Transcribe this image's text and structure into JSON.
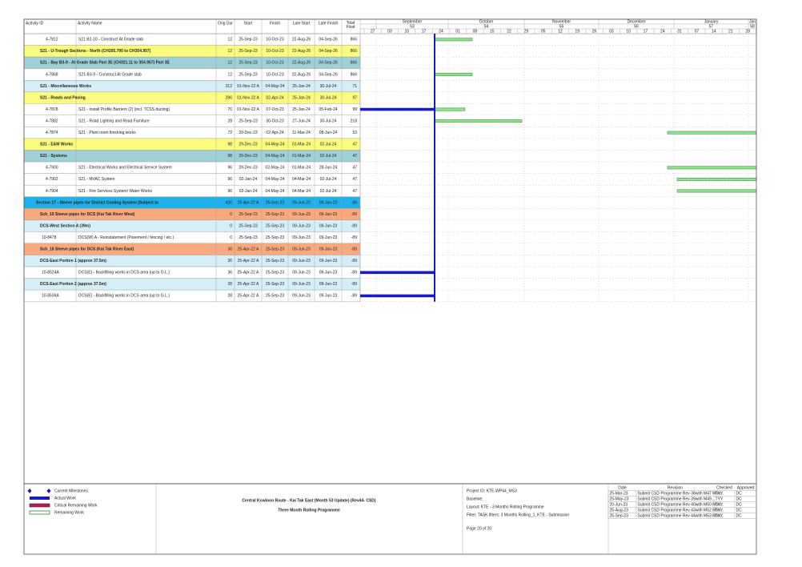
{
  "table": {
    "columns": [
      "Activity ID",
      "Activity Name",
      "Orig Dur",
      "Start",
      "Finish",
      "Late Start",
      "Late Finish",
      "Total Float"
    ],
    "rows": [
      {
        "id": "4-7812",
        "name": "S21 B2-10 - Construct At Grade slab",
        "orig_dur": 12,
        "start": "25-Sep-23",
        "finish": "10-Oct-23",
        "late_start": "22-Aug-26",
        "late_finish": "04-Sep-26",
        "total_float": 866,
        "color": "#ffffff"
      },
      {
        "name": "S21 - U-Trough Sections - North (CH205.700 to CH354.957)",
        "orig_dur": 12,
        "start": "25-Sep-23",
        "finish": "10-Oct-23",
        "late_start": "22-Aug-26",
        "late_finish": "04-Sep-26",
        "total_float": 866,
        "color": "#fbfb7e"
      },
      {
        "name": "S21 - Bay B3-9 - At Grade Slab Part 3E (CH321.11 to 354.957) Part 3E",
        "orig_dur": 12,
        "start": "25-Sep-23",
        "finish": "10-Oct-23",
        "late_start": "22-Aug-26",
        "late_finish": "04-Sep-26",
        "total_float": 866,
        "color": "#9fd0d6",
        "text_color": "#ffffff"
      },
      {
        "id": "4-7868",
        "name": "S21-B3-9 - Construct At Grade slab",
        "orig_dur": 12,
        "start": "25-Sep-23",
        "finish": "10-Oct-23",
        "late_start": "22-Aug-26",
        "late_finish": "04-Sep-26",
        "total_float": 866,
        "color": "#ffffff"
      },
      {
        "name": "S21 - Miscellaneous Works",
        "orig_dur": 312,
        "start": "01-Nov-22 A",
        "finish": "04-May-24",
        "late_start": "25-Jan-24",
        "late_finish": "30-Jul-24",
        "total_float": 71,
        "color": "#d6eef8"
      },
      {
        "name": "S21 - Roads and Paving",
        "orig_dur": 286,
        "start": "01-Nov-22 A",
        "finish": "02-Apr-24",
        "late_start": "25-Jan-24",
        "late_finish": "30-Jul-24",
        "total_float": 97,
        "color": "#fbfb7e"
      },
      {
        "id": "4-7878",
        "name": "S21 - Install Profile Barriers (2) (incl. TCSS ducting)",
        "orig_dur": 70,
        "start": "01-Nov-22 A",
        "finish": "07-Oct-23",
        "late_start": "25-Jan-24",
        "late_finish": "05-Feb-24",
        "total_float": 99,
        "color": "#ffffff"
      },
      {
        "id": "4-7882",
        "name": "S21 - Road Lighting and Road Furniture",
        "orig_dur": 28,
        "start": "25-Sep-23",
        "finish": "30-Oct-23",
        "late_start": "27-Jun-24",
        "late_finish": "30-Jul-24",
        "total_float": 218,
        "color": "#ffffff"
      },
      {
        "id": "4-7874",
        "name": "S21 - Plant room finishing works",
        "orig_dur": 72,
        "start": "29-Dec-23",
        "finish": "02-Apr-24",
        "late_start": "11-Mar-24",
        "late_finish": "08-Jun-24",
        "total_float": 53,
        "color": "#ffffff"
      },
      {
        "name": "S21 - E&M Works",
        "orig_dur": 98,
        "start": "29-Dec-23",
        "finish": "04-May-24",
        "late_start": "01-Mar-24",
        "late_finish": "02-Jul-24",
        "total_float": 47,
        "color": "#fbfb7e"
      },
      {
        "name": "S21 - Systems",
        "orig_dur": 98,
        "start": "29-Dec-23",
        "finish": "04-May-24",
        "late_start": "01-Mar-24",
        "late_finish": "02-Jul-24",
        "total_float": 47,
        "color": "#9fd0d6",
        "text_color": "#ffffff"
      },
      {
        "id": "4-7900",
        "name": "S21 - Electrical Works and Electrical Service System",
        "orig_dur": 96,
        "start": "29-Dec-23",
        "finish": "02-May-24",
        "late_start": "01-Mar-24",
        "late_finish": "28-Jun-24",
        "total_float": 47,
        "color": "#ffffff"
      },
      {
        "id": "4-7902",
        "name": "S21 - MVAC System",
        "orig_dur": 96,
        "start": "02-Jan-24",
        "finish": "04-May-24",
        "late_start": "04-Mar-24",
        "late_finish": "02-Jul-24",
        "total_float": 47,
        "color": "#ffffff"
      },
      {
        "id": "4-7904",
        "name": "S21 - Fire Services System/ Water Works",
        "orig_dur": 96,
        "start": "02-Jan-24",
        "finish": "04-May-24",
        "late_start": "04-Mar-24",
        "late_finish": "02-Jul-24",
        "total_float": 47,
        "color": "#ffffff"
      },
      {
        "name": "Section 17 - Sleeve pipes for District Cooling System (Subject to",
        "orig_dur": 420,
        "start": "25-Apr-22 A",
        "finish": "25-Sep-23",
        "late_start": "09-Jun-23",
        "late_finish": "09-Jun-23",
        "total_float": -89,
        "color": "#1eb1ea",
        "text_color": "#ffffff"
      },
      {
        "name": "Sch_10 Sleeve pipes for DCS (Kai Tak River West)",
        "orig_dur": 0,
        "start": "25-Sep-23",
        "finish": "25-Sep-23",
        "late_start": "09-Jun-23",
        "late_finish": "09-Jun-23",
        "total_float": -89,
        "color": "#f9a97e"
      },
      {
        "name": "DCS-West Section A (39m)",
        "orig_dur": 0,
        "start": "25-Sep-23",
        "finish": "25-Sep-23",
        "late_start": "09-Jun-23",
        "late_finish": "09-Jun-23",
        "total_float": -89,
        "color": "#d6eef8"
      },
      {
        "id": "10-8478",
        "name": "DCS(W) A - Reinstatement (Pavement / fencing / etc.)",
        "orig_dur": 0,
        "start": "25-Sep-23",
        "finish": "25-Sep-23",
        "late_start": "09-Jun-23",
        "late_finish": "09-Jun-23",
        "total_float": -89,
        "color": "#ffffff"
      },
      {
        "name": "Sch_10 Sleeve pipes for DCS (Kai Tak River East)",
        "orig_dur": 36,
        "start": "25-Apr-22 A",
        "finish": "25-Sep-23",
        "late_start": "09-Jun-23",
        "late_finish": "09-Jun-23",
        "total_float": -89,
        "color": "#f9a97e"
      },
      {
        "name": "DCS-East Portion 1 (approx 37.5m)",
        "orig_dur": 36,
        "start": "25-Apr-22 A",
        "finish": "25-Sep-23",
        "late_start": "09-Jun-23",
        "late_finish": "09-Jun-23",
        "total_float": -89,
        "color": "#d6eef8"
      },
      {
        "id": "10-8524A",
        "name": "DCS(E) - Backfilling works in DCS area (up to G.L.)",
        "orig_dur": 36,
        "start": "25-Apr-22 A",
        "finish": "25-Sep-23",
        "late_start": "09-Jun-23",
        "late_finish": "09-Jun-23",
        "total_float": -89,
        "color": "#ffffff"
      },
      {
        "name": "DCS-East Portion 2 (approx 37.5m)",
        "orig_dur": 28,
        "start": "25-Apr-22 A",
        "finish": "25-Sep-23",
        "late_start": "09-Jun-23",
        "late_finish": "09-Jun-23",
        "total_float": -89,
        "color": "#d6eef8"
      },
      {
        "id": "10-8536A",
        "name": "DCS(E) - Backfilling works in DCS area (up to G.L.)",
        "orig_dur": 28,
        "start": "25-Apr-22 A",
        "finish": "25-Sep-23",
        "late_start": "09-Jun-23",
        "late_finish": "09-Jun-23",
        "total_float": -89,
        "color": "#ffffff"
      }
    ]
  },
  "timescale": {
    "months": [
      "September",
      "October",
      "November",
      "December",
      "January",
      "Jan"
    ],
    "weeks": [
      "53",
      "54",
      "55",
      "56",
      "57",
      "58"
    ],
    "days": [
      "27",
      "03",
      "10",
      "17",
      "24",
      "01",
      "08",
      "15",
      "22",
      "29",
      "05",
      "12",
      "19",
      "26",
      "03",
      "10",
      "17",
      "24",
      "31",
      "07",
      "14",
      "21",
      "28"
    ]
  },
  "legend": [
    "Current Milestones",
    "Actual Work",
    "Critical Remaining Work",
    "Remaining Work"
  ],
  "title": {
    "line1": "Central Kowloon Route - Kai Tak East (Month 53 Update) (Rev44- CSD)",
    "line2": "Three Month Rolling Programme"
  },
  "info": [
    "Project ID: KTE-WP44_MS3",
    "Baseline:",
    "Layout: KTE - 3 Months Rolling Programme",
    "Filter: TASK filters: 3 Months Rolling_1, KTE - Submission",
    "Page 20 of 20"
  ],
  "revisions": {
    "columns": [
      "Date",
      "Revision",
      "Checked",
      "Approved"
    ],
    "rows": [
      [
        "25-Mar-23",
        "Submit CSD Programme Rev 38with M47 Mon...",
        "TYY",
        "DC"
      ],
      [
        "25-May-23",
        "Submit CSD Programme Rev 39with M49...",
        "TYY",
        "DC"
      ],
      [
        "20-Jun-23",
        "Submit CSD Programme Rev 40with M50 Mon...",
        "TYY",
        "DC"
      ],
      [
        "25-Aug-23",
        "Submit CSD Programme Rev 43with M52 Mon...",
        "TYY",
        "DC"
      ],
      [
        "25-Sep-23",
        "Submit CSD Programme Rev 44with M53 Mon...",
        "TYY",
        "DC"
      ]
    ]
  }
}
